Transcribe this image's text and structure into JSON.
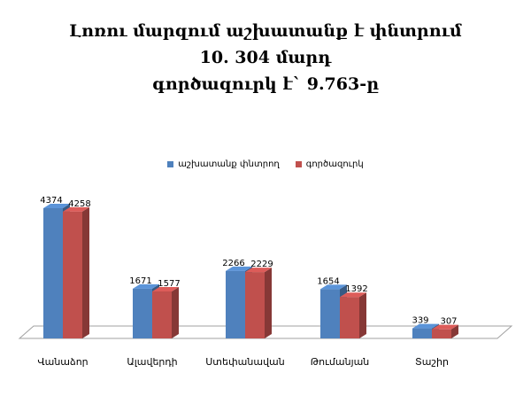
{
  "chart_data": {
    "type": "bar",
    "title_lines": [
      "Լոռու մարզում աշխատանք է փնտրում",
      "10. 304 մարդ",
      "գործազուրկ է` 9.763-ը"
    ],
    "xlabel": "",
    "ylabel": "",
    "ylim": [
      0,
      4374
    ],
    "grid": false,
    "legend_position": "top-center",
    "categories": [
      "Վանաձոր",
      "Ալավերդի",
      "Ստեփանավան",
      "Թումանյան",
      "Տաշիր"
    ],
    "series": [
      {
        "name": "աշխատանք փնտրող",
        "values": [
          4374,
          1671,
          2266,
          1654,
          339
        ],
        "color": "#4f81bd"
      },
      {
        "name": "գործազուրկ",
        "values": [
          4258,
          1577,
          2229,
          1392,
          307
        ],
        "color": "#c0504d"
      }
    ]
  }
}
